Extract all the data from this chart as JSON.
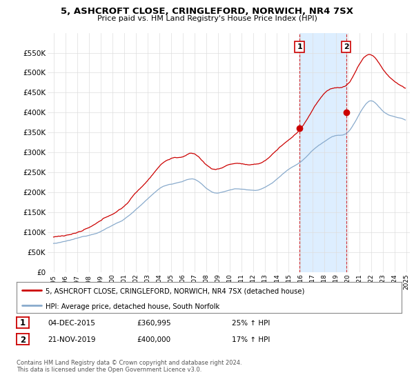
{
  "title": "5, ASHCROFT CLOSE, CRINGLEFORD, NORWICH, NR4 7SX",
  "subtitle": "Price paid vs. HM Land Registry's House Price Index (HPI)",
  "legend_line1": "5, ASHCROFT CLOSE, CRINGLEFORD, NORWICH, NR4 7SX (detached house)",
  "legend_line2": "HPI: Average price, detached house, South Norfolk",
  "annotation1_date": "04-DEC-2015",
  "annotation1_price": "£360,995",
  "annotation1_hpi": "25% ↑ HPI",
  "annotation1_year": 2015.92,
  "annotation1_value": 360995,
  "annotation2_date": "21-NOV-2019",
  "annotation2_price": "£400,000",
  "annotation2_hpi": "17% ↑ HPI",
  "annotation2_year": 2019.88,
  "annotation2_value": 400000,
  "price_color": "#cc0000",
  "hpi_color": "#88aacc",
  "shaded_color": "#ddeeff",
  "ylim": [
    0,
    600000
  ],
  "ytick_labels": [
    "£0",
    "£50K",
    "£100K",
    "£150K",
    "£200K",
    "£250K",
    "£300K",
    "£350K",
    "£400K",
    "£450K",
    "£500K",
    "£550K"
  ],
  "footer": "Contains HM Land Registry data © Crown copyright and database right 2024.\nThis data is licensed under the Open Government Licence v3.0."
}
